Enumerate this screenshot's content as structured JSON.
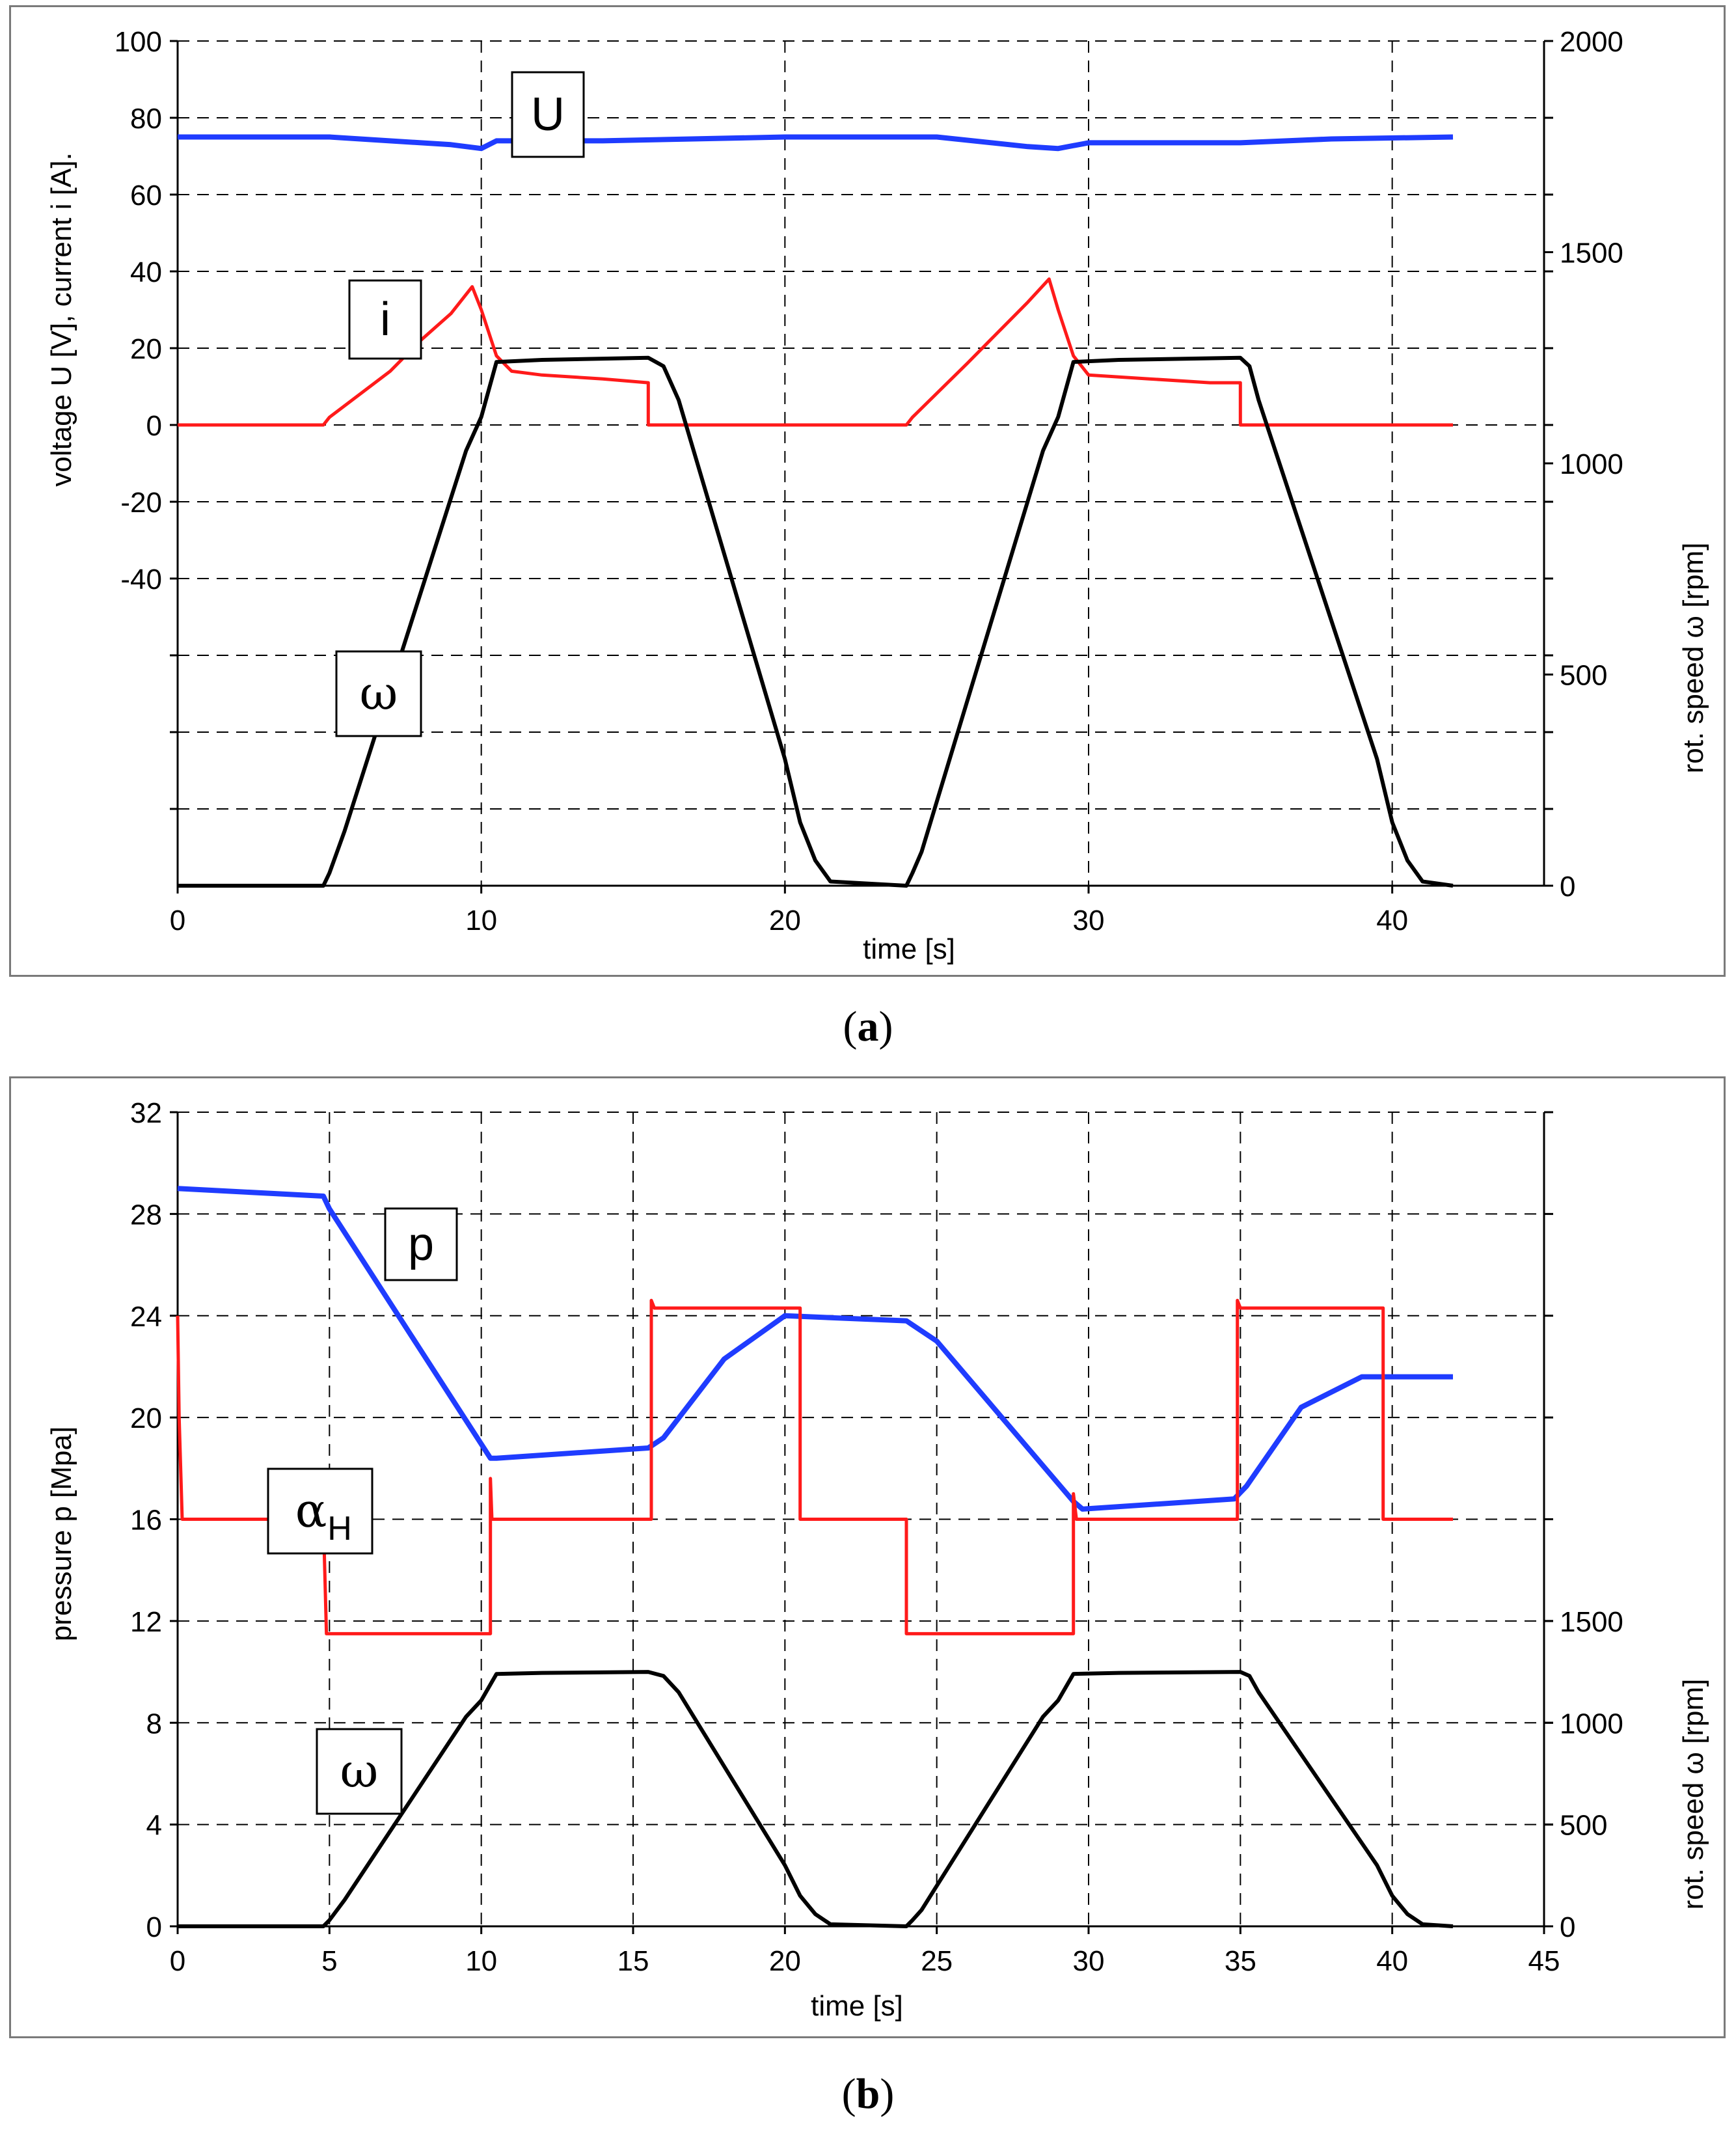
{
  "captions": {
    "a": "a",
    "b": "b"
  },
  "chart_data": [
    {
      "id": "a",
      "type": "line",
      "xlabel": "time [s]",
      "ylabel": "voltage U [V],  current  i [A].",
      "y2label": "rot. speed ω [rpm]",
      "xlim": [
        0,
        45
      ],
      "xticks": [
        0,
        10,
        20,
        30,
        40
      ],
      "ylim": [
        -120,
        100
      ],
      "yticks": [
        100,
        80,
        60,
        40,
        20,
        0,
        -20,
        -40
      ],
      "y2lim": [
        0,
        2000
      ],
      "y2ticks": [
        2000,
        1500,
        1000,
        500,
        0
      ],
      "series": [
        {
          "name": "U",
          "axis": "left",
          "color": "#1f3cff",
          "x": [
            0,
            5,
            9,
            10,
            10.5,
            14,
            20,
            25,
            28,
            29,
            30,
            35,
            38,
            42
          ],
          "y": [
            75,
            75,
            73,
            72,
            74,
            74,
            75,
            75,
            72.5,
            72,
            73.5,
            73.5,
            74.5,
            75
          ]
        },
        {
          "name": "i",
          "axis": "left",
          "color": "#ff1a1a",
          "x": [
            0,
            4.8,
            5,
            7,
            8,
            9,
            9.7,
            10,
            10.5,
            11,
            12,
            14,
            15.5,
            15.5,
            20,
            24,
            24.2,
            26,
            27,
            28,
            28.7,
            29,
            29.5,
            30,
            32,
            34,
            35,
            35,
            38,
            42
          ],
          "y": [
            0,
            0,
            2,
            14,
            22,
            29,
            36,
            30,
            18,
            14,
            13,
            12,
            11,
            0,
            0,
            0,
            2,
            16,
            24,
            32,
            38,
            30,
            18,
            13,
            12,
            11,
            11,
            0,
            0,
            0
          ]
        },
        {
          "name": "ω",
          "axis": "right",
          "color": "#000000",
          "x": [
            0,
            4.8,
            5,
            5.5,
            9.5,
            10,
            10.5,
            12,
            15.5,
            16,
            16.5,
            20,
            20.5,
            21,
            21.5,
            24,
            24.2,
            24.5,
            28.5,
            29,
            29.5,
            31,
            35,
            35.3,
            35.6,
            39.5,
            40,
            40.5,
            41,
            42
          ],
          "y": [
            0,
            0,
            30,
            130,
            1030,
            1110,
            1240,
            1245,
            1250,
            1230,
            1150,
            300,
            150,
            60,
            10,
            0,
            30,
            80,
            1030,
            1110,
            1240,
            1245,
            1250,
            1230,
            1150,
            300,
            150,
            60,
            10,
            0
          ]
        }
      ],
      "labels": [
        {
          "text": "U",
          "series": "U"
        },
        {
          "text": "i",
          "series": "i"
        },
        {
          "text": "ω",
          "series": "ω"
        }
      ]
    },
    {
      "id": "b",
      "type": "line",
      "xlabel": "time [s]",
      "ylabel": "pressure p [Mpa]",
      "y2label": "rot. speed ω [rpm]",
      "xlim": [
        0,
        45
      ],
      "xticks": [
        0,
        5,
        10,
        15,
        20,
        25,
        30,
        35,
        40,
        45
      ],
      "ylim": [
        0,
        32
      ],
      "yticks": [
        32,
        28,
        24,
        20,
        16,
        12,
        8,
        4,
        0
      ],
      "y2lim": [
        0,
        4000
      ],
      "y2ticks": [
        1500,
        1000,
        500,
        0
      ],
      "series": [
        {
          "name": "p",
          "axis": "left",
          "color": "#1f3cff",
          "x": [
            0,
            4.8,
            5,
            10.3,
            10.5,
            15.5,
            16,
            18,
            20,
            24,
            25,
            29.5,
            29.8,
            34.8,
            35.2,
            37,
            39,
            42
          ],
          "y": [
            29,
            28.7,
            28.2,
            18.4,
            18.4,
            18.8,
            19.2,
            22.3,
            24,
            23.8,
            23,
            16.7,
            16.4,
            16.8,
            17.3,
            20.4,
            21.6,
            21.6
          ]
        },
        {
          "name": "αH",
          "axis": "left",
          "color": "#ff1a1a",
          "x": [
            0,
            0.05,
            0.15,
            4.8,
            4.9,
            10.3,
            10.3,
            10.35,
            10.5,
            15.6,
            15.6,
            15.7,
            16,
            20.5,
            20.5,
            24,
            24,
            29.5,
            29.5,
            29.6,
            29.8,
            34.9,
            34.9,
            35,
            35.3,
            39.7,
            39.7,
            42
          ],
          "y": [
            24,
            20,
            16,
            16,
            11.5,
            11.5,
            17.6,
            16,
            16,
            16,
            24.6,
            24.3,
            24.3,
            24.3,
            16,
            16,
            11.5,
            11.5,
            17,
            16,
            16,
            16,
            24.6,
            24.3,
            24.3,
            24.3,
            16,
            16
          ]
        },
        {
          "name": "ω",
          "axis": "right",
          "color": "#000000",
          "x": [
            0,
            4.8,
            5,
            5.5,
            9.5,
            10,
            10.5,
            12,
            15.5,
            16,
            16.5,
            20,
            20.5,
            21,
            21.5,
            24,
            24.2,
            24.5,
            28.5,
            29,
            29.5,
            31,
            35,
            35.3,
            35.6,
            39.5,
            40,
            40.5,
            41,
            42
          ],
          "y": [
            0,
            0,
            30,
            130,
            1030,
            1110,
            1240,
            1245,
            1250,
            1230,
            1150,
            300,
            150,
            60,
            10,
            0,
            30,
            80,
            1030,
            1110,
            1240,
            1245,
            1250,
            1230,
            1150,
            300,
            150,
            60,
            10,
            0
          ]
        }
      ],
      "labels": [
        {
          "text": "p",
          "series": "p"
        },
        {
          "text": "α",
          "sub": "H",
          "series": "αH"
        },
        {
          "text": "ω",
          "series": "ω"
        }
      ]
    }
  ]
}
